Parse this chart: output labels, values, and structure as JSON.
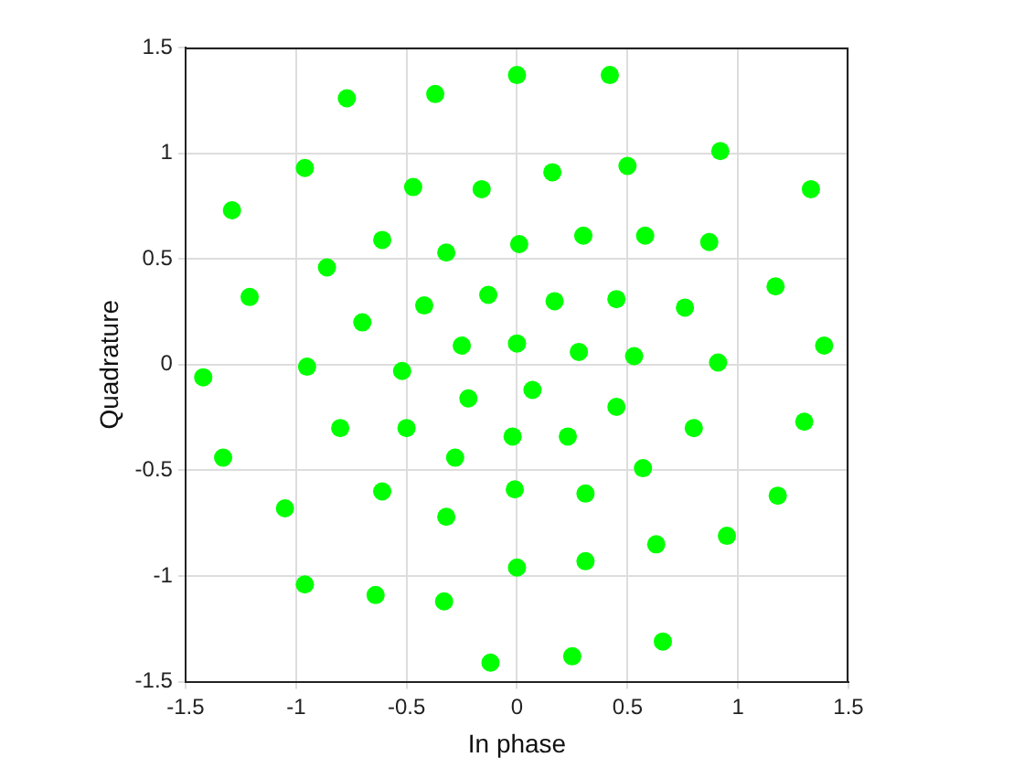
{
  "chart_data": {
    "type": "scatter",
    "xlabel": "In phase",
    "ylabel": "Quadrature",
    "xlim": [
      -1.5,
      1.5
    ],
    "ylim": [
      -1.5,
      1.5
    ],
    "xticks": [
      -1.5,
      -1,
      -0.5,
      0,
      0.5,
      1,
      1.5
    ],
    "yticks": [
      -1.5,
      -1,
      -0.5,
      0,
      0.5,
      1,
      1.5
    ],
    "grid": true,
    "marker": "circle",
    "legend": false,
    "series": [
      {
        "color": "#00ff00",
        "x": [
          -0.77,
          -0.37,
          0,
          0.42,
          -0.96,
          -1.29,
          -0.47,
          -0.16,
          0.16,
          0.5,
          0.92,
          1.33,
          -0.61,
          -0.86,
          -0.32,
          0.01,
          0.3,
          0.58,
          0.87,
          -1.21,
          -0.42,
          -0.13,
          0.17,
          0.45,
          0.76,
          1.17,
          -0.7,
          -0.25,
          0,
          0.28,
          0.53,
          0.91,
          1.39,
          -0.95,
          -0.52,
          -1.42,
          0.07,
          -0.22,
          0.45,
          -0.8,
          -0.5,
          -0.02,
          0.23,
          0.8,
          1.3,
          -1.33,
          -0.28,
          0.57,
          -0.61,
          -0.01,
          0.31,
          1.18,
          -1.05,
          -0.32,
          0.63,
          0.95,
          -0.96,
          -0.64,
          -0.33,
          0,
          0.31,
          -0.12,
          0.25,
          0.66
        ],
        "values": [
          1.26,
          1.28,
          1.37,
          1.37,
          0.93,
          0.73,
          0.84,
          0.83,
          0.91,
          0.94,
          1.01,
          0.83,
          0.59,
          0.46,
          0.53,
          0.57,
          0.61,
          0.61,
          0.58,
          0.32,
          0.28,
          0.33,
          0.3,
          0.31,
          0.27,
          0.37,
          0.2,
          0.09,
          0.1,
          0.06,
          0.04,
          0.01,
          0.09,
          -0.01,
          -0.03,
          -0.06,
          -0.12,
          -0.16,
          -0.2,
          -0.3,
          -0.3,
          -0.34,
          -0.34,
          -0.3,
          -0.27,
          -0.44,
          -0.44,
          -0.49,
          -0.6,
          -0.59,
          -0.61,
          -0.62,
          -0.68,
          -0.72,
          -0.85,
          -0.81,
          -1.04,
          -1.09,
          -1.12,
          -0.96,
          -0.93,
          -1.41,
          -1.38,
          -1.31
        ]
      }
    ]
  }
}
